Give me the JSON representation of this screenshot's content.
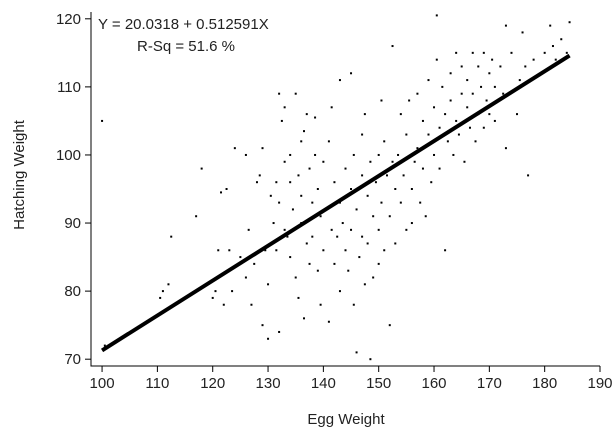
{
  "chart_data": {
    "type": "scatter",
    "xlabel": "Egg Weight",
    "ylabel": "Hatching Weight",
    "xlim": [
      98,
      190
    ],
    "ylim": [
      69,
      121
    ],
    "xticks": [
      100,
      110,
      120,
      130,
      140,
      150,
      160,
      170,
      180,
      190
    ],
    "yticks": [
      70,
      80,
      90,
      100,
      110,
      120
    ],
    "grid": false,
    "annotations": [
      "Y = 20.0318 + 0.512591X",
      "R-Sq = 51.6 %"
    ],
    "fit": {
      "intercept": 20.0318,
      "slope": 0.512591,
      "x_range": [
        100,
        184.5
      ]
    },
    "points": [
      [
        100,
        105
      ],
      [
        100.5,
        72
      ],
      [
        110.5,
        79
      ],
      [
        111,
        80
      ],
      [
        112,
        81
      ],
      [
        112.5,
        88
      ],
      [
        117,
        91
      ],
      [
        118,
        98
      ],
      [
        120,
        79
      ],
      [
        120.5,
        80
      ],
      [
        121,
        82
      ],
      [
        121,
        86
      ],
      [
        121.5,
        94.5
      ],
      [
        122,
        78
      ],
      [
        122.5,
        95
      ],
      [
        123,
        86
      ],
      [
        123.5,
        80
      ],
      [
        124,
        101
      ],
      [
        125,
        85
      ],
      [
        126,
        82
      ],
      [
        126.5,
        89
      ],
      [
        127,
        78
      ],
      [
        127.5,
        84
      ],
      [
        128,
        96
      ],
      [
        128.5,
        97
      ],
      [
        129,
        75
      ],
      [
        129.5,
        86
      ],
      [
        130,
        73
      ],
      [
        130,
        81
      ],
      [
        130.5,
        94
      ],
      [
        131,
        90
      ],
      [
        131.5,
        96
      ],
      [
        131.5,
        86
      ],
      [
        132,
        93
      ],
      [
        132,
        74
      ],
      [
        132.5,
        105
      ],
      [
        133,
        107
      ],
      [
        133,
        99
      ],
      [
        133,
        89
      ],
      [
        133.5,
        88
      ],
      [
        134,
        100
      ],
      [
        134,
        96
      ],
      [
        134,
        85
      ],
      [
        134.5,
        92
      ],
      [
        135,
        109
      ],
      [
        135,
        82
      ],
      [
        135.5,
        97
      ],
      [
        135.5,
        79
      ],
      [
        136,
        102
      ],
      [
        136,
        94
      ],
      [
        136,
        90
      ],
      [
        136.5,
        76
      ],
      [
        137,
        106
      ],
      [
        137,
        87
      ],
      [
        137.5,
        84
      ],
      [
        137.5,
        98
      ],
      [
        138,
        93
      ],
      [
        138,
        88
      ],
      [
        138.5,
        100
      ],
      [
        139,
        95
      ],
      [
        139,
        83
      ],
      [
        139.5,
        91
      ],
      [
        139.5,
        78
      ],
      [
        140,
        99
      ],
      [
        140,
        86
      ],
      [
        140.5,
        92
      ],
      [
        141,
        102
      ],
      [
        141,
        75.5
      ],
      [
        141.5,
        89
      ],
      [
        142,
        96
      ],
      [
        142,
        84
      ],
      [
        142.5,
        88
      ],
      [
        143,
        93
      ],
      [
        143,
        80
      ],
      [
        143.5,
        90
      ],
      [
        144,
        98
      ],
      [
        144,
        86
      ],
      [
        144.5,
        83
      ],
      [
        145,
        95
      ],
      [
        145,
        89
      ],
      [
        145.5,
        78
      ],
      [
        145.5,
        100
      ],
      [
        146,
        92
      ],
      [
        146,
        71
      ],
      [
        146.5,
        85
      ],
      [
        147,
        97
      ],
      [
        147,
        88
      ],
      [
        147,
        103
      ],
      [
        147.5,
        81
      ],
      [
        148,
        94
      ],
      [
        148,
        87
      ],
      [
        148.5,
        99
      ],
      [
        148.5,
        70
      ],
      [
        149,
        91
      ],
      [
        149,
        82
      ],
      [
        149.5,
        96
      ],
      [
        150,
        89
      ],
      [
        150,
        100
      ],
      [
        150,
        84
      ],
      [
        150.5,
        93
      ],
      [
        151,
        102
      ],
      [
        151,
        86
      ],
      [
        151.5,
        97
      ],
      [
        152,
        91
      ],
      [
        152,
        75
      ],
      [
        152.5,
        99
      ],
      [
        153,
        95
      ],
      [
        153,
        87
      ],
      [
        153.5,
        100
      ],
      [
        154,
        106
      ],
      [
        154,
        93
      ],
      [
        154.5,
        97
      ],
      [
        155,
        89
      ],
      [
        155,
        103
      ],
      [
        155.5,
        108
      ],
      [
        156,
        95
      ],
      [
        156,
        90
      ],
      [
        156.5,
        99
      ],
      [
        157,
        101
      ],
      [
        157,
        109
      ],
      [
        157.5,
        93
      ],
      [
        158,
        105
      ],
      [
        158,
        98
      ],
      [
        158.5,
        91
      ],
      [
        159,
        103
      ],
      [
        159,
        111
      ],
      [
        159.5,
        96
      ],
      [
        160,
        107
      ],
      [
        160,
        100
      ],
      [
        160.5,
        114
      ],
      [
        161,
        104
      ],
      [
        161,
        98
      ],
      [
        161.5,
        110
      ],
      [
        162,
        106
      ],
      [
        162,
        86
      ],
      [
        162.5,
        102
      ],
      [
        163,
        112
      ],
      [
        163,
        108
      ],
      [
        163.5,
        100
      ],
      [
        164,
        115
      ],
      [
        164,
        105
      ],
      [
        164.5,
        103
      ],
      [
        165,
        109
      ],
      [
        165,
        113
      ],
      [
        165.5,
        99
      ],
      [
        166,
        107
      ],
      [
        166,
        111
      ],
      [
        166.5,
        104
      ],
      [
        167,
        115
      ],
      [
        167,
        109
      ],
      [
        167.5,
        102
      ],
      [
        168,
        113
      ],
      [
        168,
        106
      ],
      [
        168.5,
        110
      ],
      [
        169,
        104
      ],
      [
        169,
        115
      ],
      [
        169.5,
        108
      ],
      [
        170,
        112
      ],
      [
        170,
        106
      ],
      [
        170.5,
        114
      ],
      [
        171,
        110
      ],
      [
        171,
        105
      ],
      [
        172,
        113
      ],
      [
        172.5,
        109
      ],
      [
        173,
        119
      ],
      [
        173,
        101
      ],
      [
        174,
        115
      ],
      [
        175,
        106
      ],
      [
        175.5,
        111
      ],
      [
        176,
        118
      ],
      [
        176.5,
        113
      ],
      [
        177,
        97
      ],
      [
        178,
        114
      ],
      [
        180,
        115
      ],
      [
        181,
        119
      ],
      [
        181.5,
        116
      ],
      [
        182,
        114
      ],
      [
        183,
        117
      ],
      [
        184,
        115
      ],
      [
        184.5,
        119.5
      ],
      [
        160.5,
        120.5
      ],
      [
        152.5,
        116
      ],
      [
        145,
        112
      ],
      [
        143,
        111
      ],
      [
        132,
        109
      ],
      [
        136.5,
        103.5
      ],
      [
        129,
        101
      ],
      [
        126,
        100
      ],
      [
        138.5,
        105.5
      ],
      [
        141.5,
        107
      ],
      [
        147.5,
        106
      ],
      [
        150.5,
        108
      ]
    ]
  }
}
